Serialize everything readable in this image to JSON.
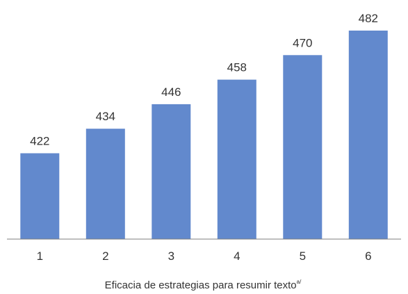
{
  "chart_data": {
    "type": "bar",
    "categories": [
      "1",
      "2",
      "3",
      "4",
      "5",
      "6"
    ],
    "values": [
      422,
      434,
      446,
      458,
      470,
      482
    ],
    "xlabel": "Eficacia de estrategias para resumir texto",
    "xlabel_superscript": "a/",
    "bar_color": "#6289cd",
    "axis_color": "#7f7f7f",
    "ylim": [
      380,
      490
    ],
    "grid": false,
    "legend": "none"
  }
}
